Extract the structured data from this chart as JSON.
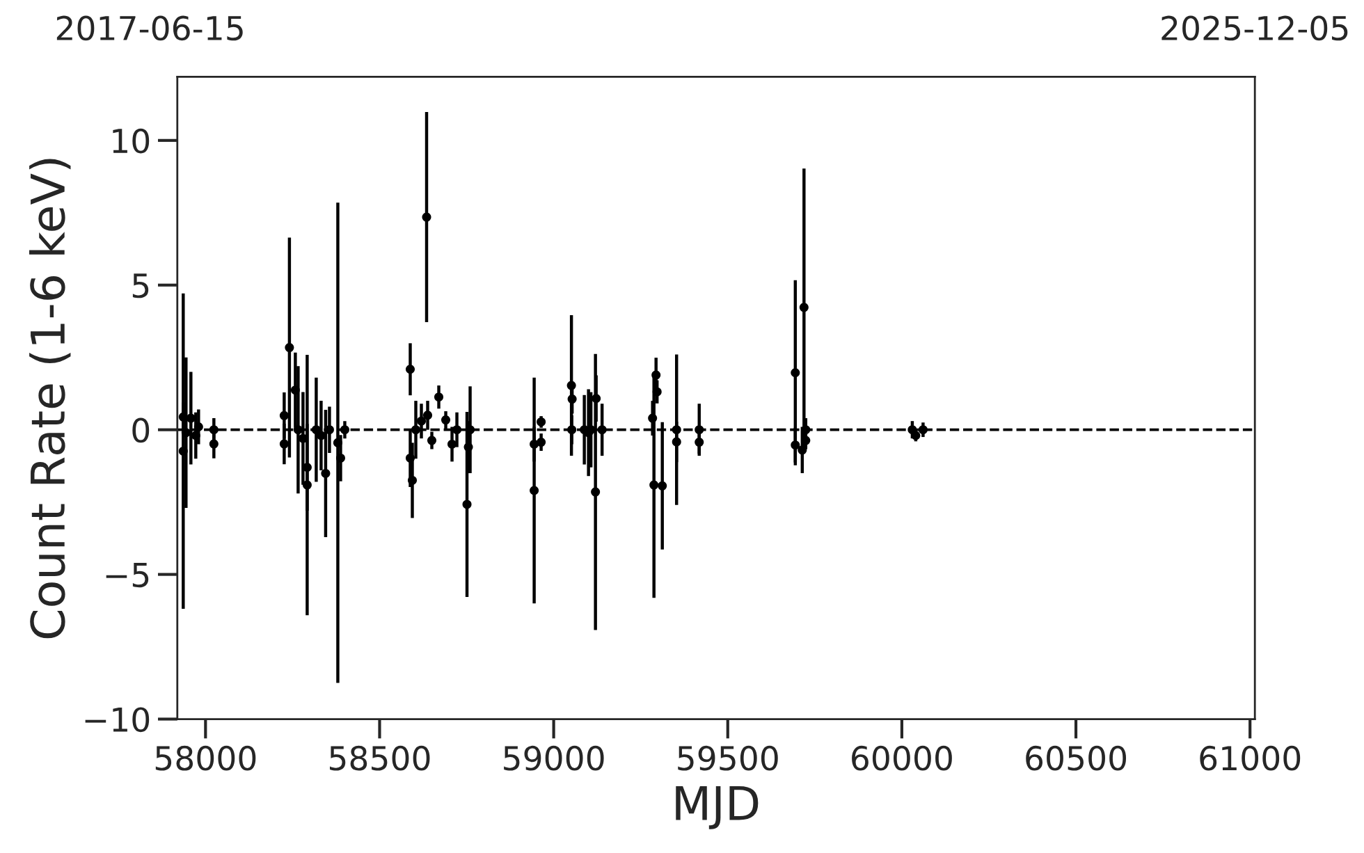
{
  "chart_data": {
    "type": "scatter",
    "xlabel": "MJD",
    "ylabel": "Count Rate (1-6 keV)",
    "xlim": [
      57919,
      61014
    ],
    "xticks": [
      58000,
      58500,
      59000,
      59500,
      60000,
      60500,
      61000
    ],
    "ylim": [
      -10,
      12.2
    ],
    "yticks": [
      {
        "value": -10,
        "label": "−10"
      },
      {
        "value": -5,
        "label": "−5"
      },
      0,
      5,
      10
    ],
    "annotations": [
      "2017-06-15",
      "2025-12-05"
    ],
    "marker": "circle",
    "grid": false,
    "ref_lines": [
      {
        "axis": "y",
        "value": 0,
        "color": "#000000",
        "line_style": "dashed"
      }
    ],
    "series": [
      {
        "color": "#000000",
        "x": [
          57936,
          57936,
          57944,
          57958,
          57972,
          57980,
          58024,
          58024,
          58226,
          58226,
          58241,
          58258,
          58266,
          58280,
          58292,
          58292,
          58318,
          58332,
          58345,
          58356,
          58380,
          58388,
          58400,
          58588,
          58588,
          58594,
          58604,
          58620,
          58635,
          58638,
          58650,
          58670,
          58690,
          58708,
          58722,
          58751,
          58755,
          58760,
          58944,
          58944,
          58964,
          58964,
          59051,
          59053,
          59052,
          59088,
          59100,
          59107,
          59120,
          59122,
          59139,
          59284,
          59288,
          59294,
          59297,
          59312,
          59353,
          59353,
          59418,
          59418,
          59694,
          59694,
          59719,
          59714,
          59724,
          59724,
          60030,
          60040,
          60061
        ],
        "values": [
          0.44,
          -0.74,
          -0.1,
          0.4,
          -0.2,
          0.1,
          -0.49,
          0.0,
          0.49,
          -0.49,
          2.84,
          1.37,
          0.0,
          -0.3,
          -1.91,
          -1.3,
          0.0,
          -0.2,
          -1.51,
          0.0,
          -0.45,
          -0.98,
          0.0,
          2.09,
          -0.98,
          -1.75,
          0.0,
          0.3,
          7.35,
          0.5,
          -0.37,
          1.13,
          0.34,
          -0.5,
          0.0,
          -2.58,
          -0.6,
          0.0,
          -2.1,
          -0.5,
          0.27,
          -0.43,
          1.53,
          1.06,
          0.0,
          0.0,
          -0.1,
          0.0,
          -2.15,
          1.08,
          0.0,
          0.4,
          -1.91,
          1.89,
          1.31,
          -1.94,
          0.0,
          -0.42,
          0.0,
          -0.43,
          1.97,
          -0.53,
          4.23,
          -0.7,
          0.0,
          -0.37,
          0.0,
          -0.2,
          0.0
        ],
        "errors": [
          0.5,
          5.45,
          2.6,
          1.6,
          0.8,
          0.6,
          0.5,
          0.4,
          0.8,
          0.7,
          3.8,
          1.3,
          2.2,
          1.6,
          4.5,
          1.5,
          1.8,
          1.2,
          2.2,
          0.8,
          8.3,
          0.8,
          0.3,
          0.9,
          1.0,
          1.3,
          1.0,
          0.6,
          3.63,
          0.5,
          0.3,
          0.4,
          0.3,
          0.6,
          0.6,
          3.2,
          0.9,
          1.5,
          3.9,
          0.6,
          0.2,
          0.3,
          2.43,
          0.5,
          0.5,
          1.2,
          1.5,
          1.3,
          4.77,
          0.8,
          0.9,
          0.6,
          3.9,
          0.6,
          0.4,
          2.2,
          2.6,
          0.7,
          0.9,
          0.4,
          3.2,
          0.6,
          4.8,
          0.8,
          0.4,
          0.3,
          0.3,
          0.2,
          0.25
        ]
      }
    ]
  }
}
